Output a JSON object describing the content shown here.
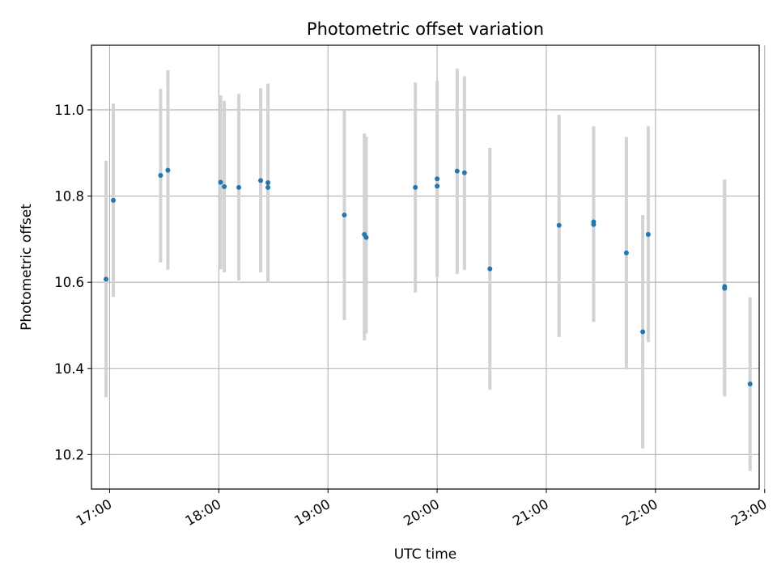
{
  "chart_data": {
    "type": "scatter",
    "title": "Photometric offset variation",
    "xlabel": "UTC time",
    "ylabel": "Photometric offset",
    "x_unit": "UTC time (HH:MM)",
    "xlim": [
      "16:50",
      "22:57"
    ],
    "ylim": [
      10.12,
      11.15
    ],
    "x_ticks": [
      "17:00",
      "18:00",
      "19:00",
      "20:00",
      "21:00",
      "22:00",
      "23:00"
    ],
    "y_ticks": [
      "10.2",
      "10.4",
      "10.6",
      "10.8",
      "11.0"
    ],
    "grid": true,
    "colors": {
      "marker": "#1f77b4",
      "errorbar": "#d3d3d3",
      "grid": "#b0b0b0"
    },
    "series": [
      {
        "points": [
          {
            "x": "16:58",
            "y": 10.607,
            "lo": 10.333,
            "hi": 10.882
          },
          {
            "x": "17:02",
            "y": 10.79,
            "lo": 10.566,
            "hi": 11.015
          },
          {
            "x": "17:28",
            "y": 10.848,
            "lo": 10.646,
            "hi": 11.049
          },
          {
            "x": "17:32",
            "y": 10.86,
            "lo": 10.629,
            "hi": 11.092
          },
          {
            "x": "18:01",
            "y": 10.832,
            "lo": 10.63,
            "hi": 11.034
          },
          {
            "x": "18:03",
            "y": 10.822,
            "lo": 10.623,
            "hi": 11.021
          },
          {
            "x": "18:11",
            "y": 10.82,
            "lo": 10.604,
            "hi": 11.037
          },
          {
            "x": "18:23",
            "y": 10.836,
            "lo": 10.623,
            "hi": 11.05
          },
          {
            "x": "18:27",
            "y": 10.831,
            "lo": 10.603,
            "hi": 11.061
          },
          {
            "x": "18:27",
            "y": 10.82,
            "lo": 10.599,
            "hi": 11.042
          },
          {
            "x": "19:09",
            "y": 10.756,
            "lo": 10.512,
            "hi": 11.0
          },
          {
            "x": "19:20",
            "y": 10.711,
            "lo": 10.465,
            "hi": 10.945
          },
          {
            "x": "19:21",
            "y": 10.704,
            "lo": 10.481,
            "hi": 10.938
          },
          {
            "x": "19:48",
            "y": 10.82,
            "lo": 10.576,
            "hi": 11.064
          },
          {
            "x": "20:00",
            "y": 10.84,
            "lo": 10.613,
            "hi": 11.068
          },
          {
            "x": "20:00",
            "y": 10.823,
            "lo": 10.614,
            "hi": 11.031
          },
          {
            "x": "20:11",
            "y": 10.858,
            "lo": 10.619,
            "hi": 11.096
          },
          {
            "x": "20:15",
            "y": 10.854,
            "lo": 10.629,
            "hi": 11.078
          },
          {
            "x": "20:29",
            "y": 10.631,
            "lo": 10.35,
            "hi": 10.912
          },
          {
            "x": "21:07",
            "y": 10.732,
            "lo": 10.473,
            "hi": 10.989
          },
          {
            "x": "21:26",
            "y": 10.74,
            "lo": 10.508,
            "hi": 10.962
          },
          {
            "x": "21:26",
            "y": 10.734,
            "lo": 10.51,
            "hi": 10.96
          },
          {
            "x": "21:44",
            "y": 10.668,
            "lo": 10.398,
            "hi": 10.937
          },
          {
            "x": "21:53",
            "y": 10.485,
            "lo": 10.214,
            "hi": 10.756
          },
          {
            "x": "21:56",
            "y": 10.711,
            "lo": 10.461,
            "hi": 10.962
          },
          {
            "x": "22:38",
            "y": 10.59,
            "lo": 10.342,
            "hi": 10.838
          },
          {
            "x": "22:38",
            "y": 10.586,
            "lo": 10.335,
            "hi": 10.838
          },
          {
            "x": "22:52",
            "y": 10.364,
            "lo": 10.162,
            "hi": 10.565
          }
        ]
      }
    ]
  }
}
